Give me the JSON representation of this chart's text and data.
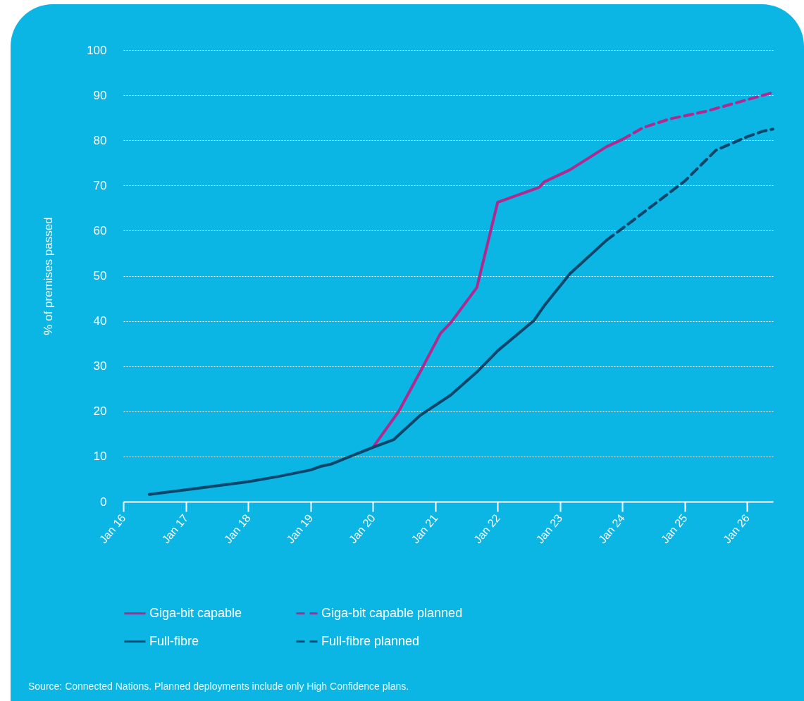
{
  "chart_data": {
    "type": "line",
    "ylabel": "% of premises passed",
    "xlim": [
      "2016-01",
      "2026-06"
    ],
    "ylim": [
      0,
      100
    ],
    "xticks": [
      {
        "value": "2016-01",
        "label": "Jan 16"
      },
      {
        "value": "2017-01",
        "label": "Jan 17"
      },
      {
        "value": "2018-01",
        "label": "Jan 18"
      },
      {
        "value": "2019-01",
        "label": "Jan 19"
      },
      {
        "value": "2020-01",
        "label": "Jan 20"
      },
      {
        "value": "2021-01",
        "label": "Jan 21"
      },
      {
        "value": "2022-01",
        "label": "Jan 22"
      },
      {
        "value": "2023-01",
        "label": "Jan 23"
      },
      {
        "value": "2024-01",
        "label": "Jan 24"
      },
      {
        "value": "2025-01",
        "label": "Jan 25"
      },
      {
        "value": "2026-01",
        "label": "Jan 26"
      }
    ],
    "yticks": [
      0,
      10,
      20,
      30,
      40,
      50,
      60,
      70,
      80,
      90,
      100
    ],
    "grid": "y",
    "legend": "bottom",
    "series": [
      {
        "name": "Giga-bit capable",
        "color": "#b0298f",
        "line_style": "solid",
        "x": [
          "2020-01",
          "2020-06",
          "2020-10",
          "2021-02",
          "2021-04",
          "2021-09",
          "2022-01",
          "2022-09",
          "2022-10",
          "2023-03",
          "2023-10",
          "2024-01"
        ],
        "values": [
          12,
          20,
          28.5,
          37.3,
          39.6,
          47.4,
          66.3,
          69.6,
          70.8,
          73.5,
          78.6,
          80.2
        ]
      },
      {
        "name": "Giga-bit capable planned",
        "color": "#b0298f",
        "line_style": "dashed",
        "x": [
          "2024-01",
          "2024-05",
          "2024-10",
          "2025-05",
          "2026-01",
          "2026-06"
        ],
        "values": [
          80.2,
          82.8,
          84.7,
          86.4,
          89,
          90.6
        ]
      },
      {
        "name": "Full-fibre",
        "color": "#07476b",
        "line_style": "solid",
        "x": [
          "2016-06",
          "2017-01",
          "2018-01",
          "2018-07",
          "2019-01",
          "2019-03",
          "2019-05",
          "2020-01",
          "2020-05",
          "2020-10",
          "2021-04",
          "2021-09",
          "2022-01",
          "2022-08",
          "2022-10",
          "2023-03",
          "2023-10"
        ],
        "values": [
          1.6,
          2.6,
          4.4,
          5.6,
          7,
          7.8,
          8.3,
          12,
          13.7,
          19,
          23.6,
          28.7,
          33.4,
          40.1,
          43.4,
          50.5,
          57.9
        ]
      },
      {
        "name": "Full-fibre planned",
        "color": "#07476b",
        "line_style": "dashed",
        "x": [
          "2023-10",
          "2024-03",
          "2025-01",
          "2025-07",
          "2026-01",
          "2026-04",
          "2026-06"
        ],
        "values": [
          57.9,
          62.2,
          71,
          77.8,
          80.8,
          82,
          82.5
        ]
      }
    ],
    "annotations": [
      "Source: Connected Nations. Planned deployments include only High Confidence plans."
    ]
  }
}
